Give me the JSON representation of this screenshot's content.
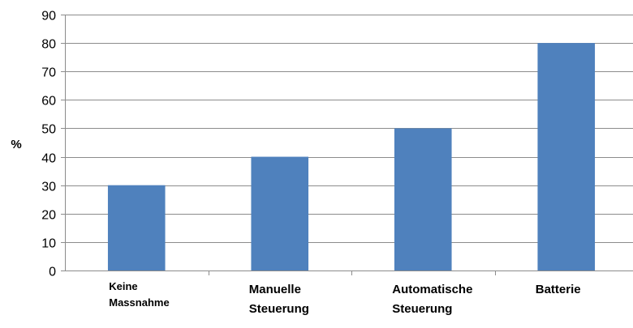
{
  "chart_data": {
    "type": "bar",
    "title": "",
    "xlabel": "",
    "ylabel": "%",
    "ylim": [
      0,
      90
    ],
    "ytick_step": 10,
    "grid": true,
    "legend": "none",
    "bar_color": "#4f81bd",
    "grid_color": "#8c8c8c",
    "categories": [
      [
        "Keine",
        "Massnahme"
      ],
      [
        "Manuelle",
        "Steuerung"
      ],
      [
        "Automatische",
        "Steuerung"
      ],
      [
        "Batterie"
      ]
    ],
    "values": [
      30,
      40,
      50,
      80
    ]
  }
}
